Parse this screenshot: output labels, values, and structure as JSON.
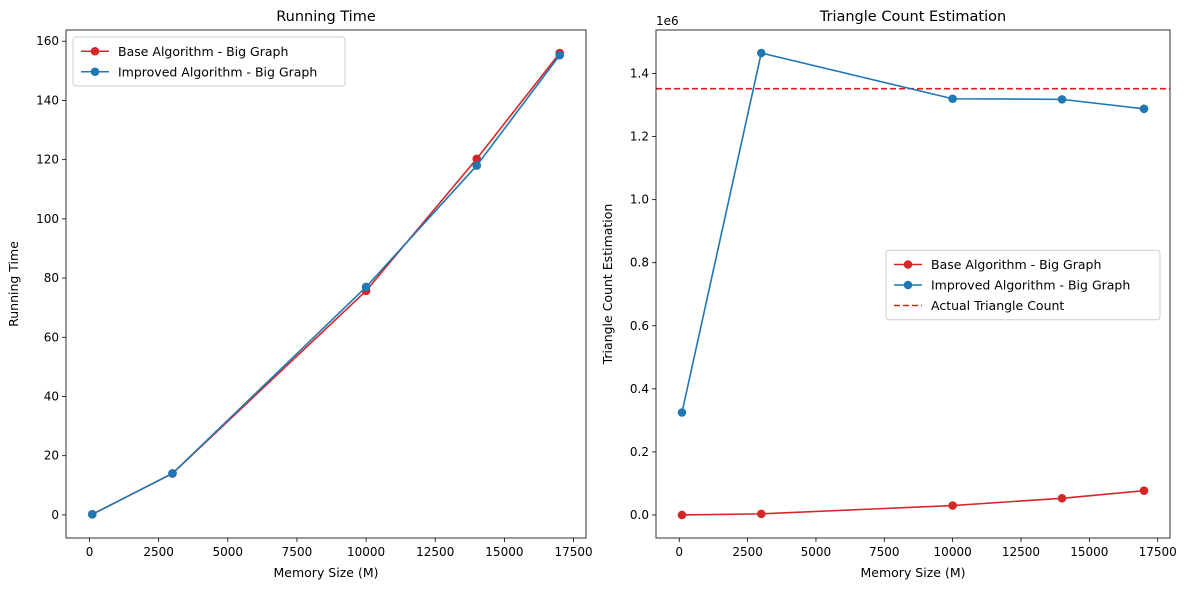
{
  "colors": {
    "base": "#d62728",
    "improved": "#1f77b4",
    "actual": "#e31a1c"
  },
  "chart_data": [
    {
      "type": "line",
      "title": "Running Time",
      "xlabel": "Memory Size (M)",
      "ylabel": "Running Time",
      "xlim": [
        -850,
        17950
      ],
      "ylim": [
        -7.8,
        163.8
      ],
      "xticks": [
        0,
        2500,
        5000,
        7500,
        10000,
        12500,
        15000,
        17500
      ],
      "xtick_labels": [
        "0",
        "2500",
        "5000",
        "7500",
        "10000",
        "12500",
        "15000",
        "17500"
      ],
      "yticks": [
        0,
        20,
        40,
        60,
        80,
        100,
        120,
        140,
        160
      ],
      "ytick_labels": [
        "0",
        "20",
        "40",
        "60",
        "80",
        "100",
        "120",
        "140",
        "160"
      ],
      "legend_position": "upper-left",
      "series": [
        {
          "name": "Base Algorithm - Big Graph",
          "color_key": "base",
          "style": "solid",
          "marker": "circle",
          "x": [
            100,
            3000,
            10000,
            14000,
            17000
          ],
          "y": [
            0.2,
            14,
            75.7,
            120.3,
            156
          ]
        },
        {
          "name": "Improved Algorithm - Big Graph",
          "color_key": "improved",
          "style": "solid",
          "marker": "circle",
          "x": [
            100,
            3000,
            10000,
            14000,
            17000
          ],
          "y": [
            0.2,
            14,
            77,
            118,
            155.3
          ]
        }
      ]
    },
    {
      "type": "line",
      "title": "Triangle Count Estimation",
      "xlabel": "Memory Size (M)",
      "ylabel": "Triangle Count Estimation",
      "offset_text": "1e6",
      "xlim": [
        -850,
        17950
      ],
      "ylim": [
        -73000,
        1538000
      ],
      "xticks": [
        0,
        2500,
        5000,
        7500,
        10000,
        12500,
        15000,
        17500
      ],
      "xtick_labels": [
        "0",
        "2500",
        "5000",
        "7500",
        "10000",
        "12500",
        "15000",
        "17500"
      ],
      "yticks": [
        0,
        200000,
        400000,
        600000,
        800000,
        1000000,
        1200000,
        1400000
      ],
      "ytick_labels": [
        "0.0",
        "0.2",
        "0.4",
        "0.6",
        "0.8",
        "1.0",
        "1.2",
        "1.4"
      ],
      "legend_position": "center-right",
      "series": [
        {
          "name": "Base Algorithm - Big Graph",
          "color_key": "base",
          "style": "solid",
          "marker": "circle",
          "x": [
            100,
            3000,
            10000,
            14000,
            17000
          ],
          "y": [
            0,
            3500,
            30000,
            53000,
            77000
          ]
        },
        {
          "name": "Improved Algorithm - Big Graph",
          "color_key": "improved",
          "style": "solid",
          "marker": "circle",
          "x": [
            100,
            3000,
            10000,
            14000,
            17000
          ],
          "y": [
            325000,
            1465000,
            1320000,
            1318000,
            1288000
          ]
        }
      ],
      "reference_lines": [
        {
          "name": "Actual Triangle Count",
          "color_key": "actual",
          "style": "dashed",
          "y": 1352000
        }
      ]
    }
  ]
}
